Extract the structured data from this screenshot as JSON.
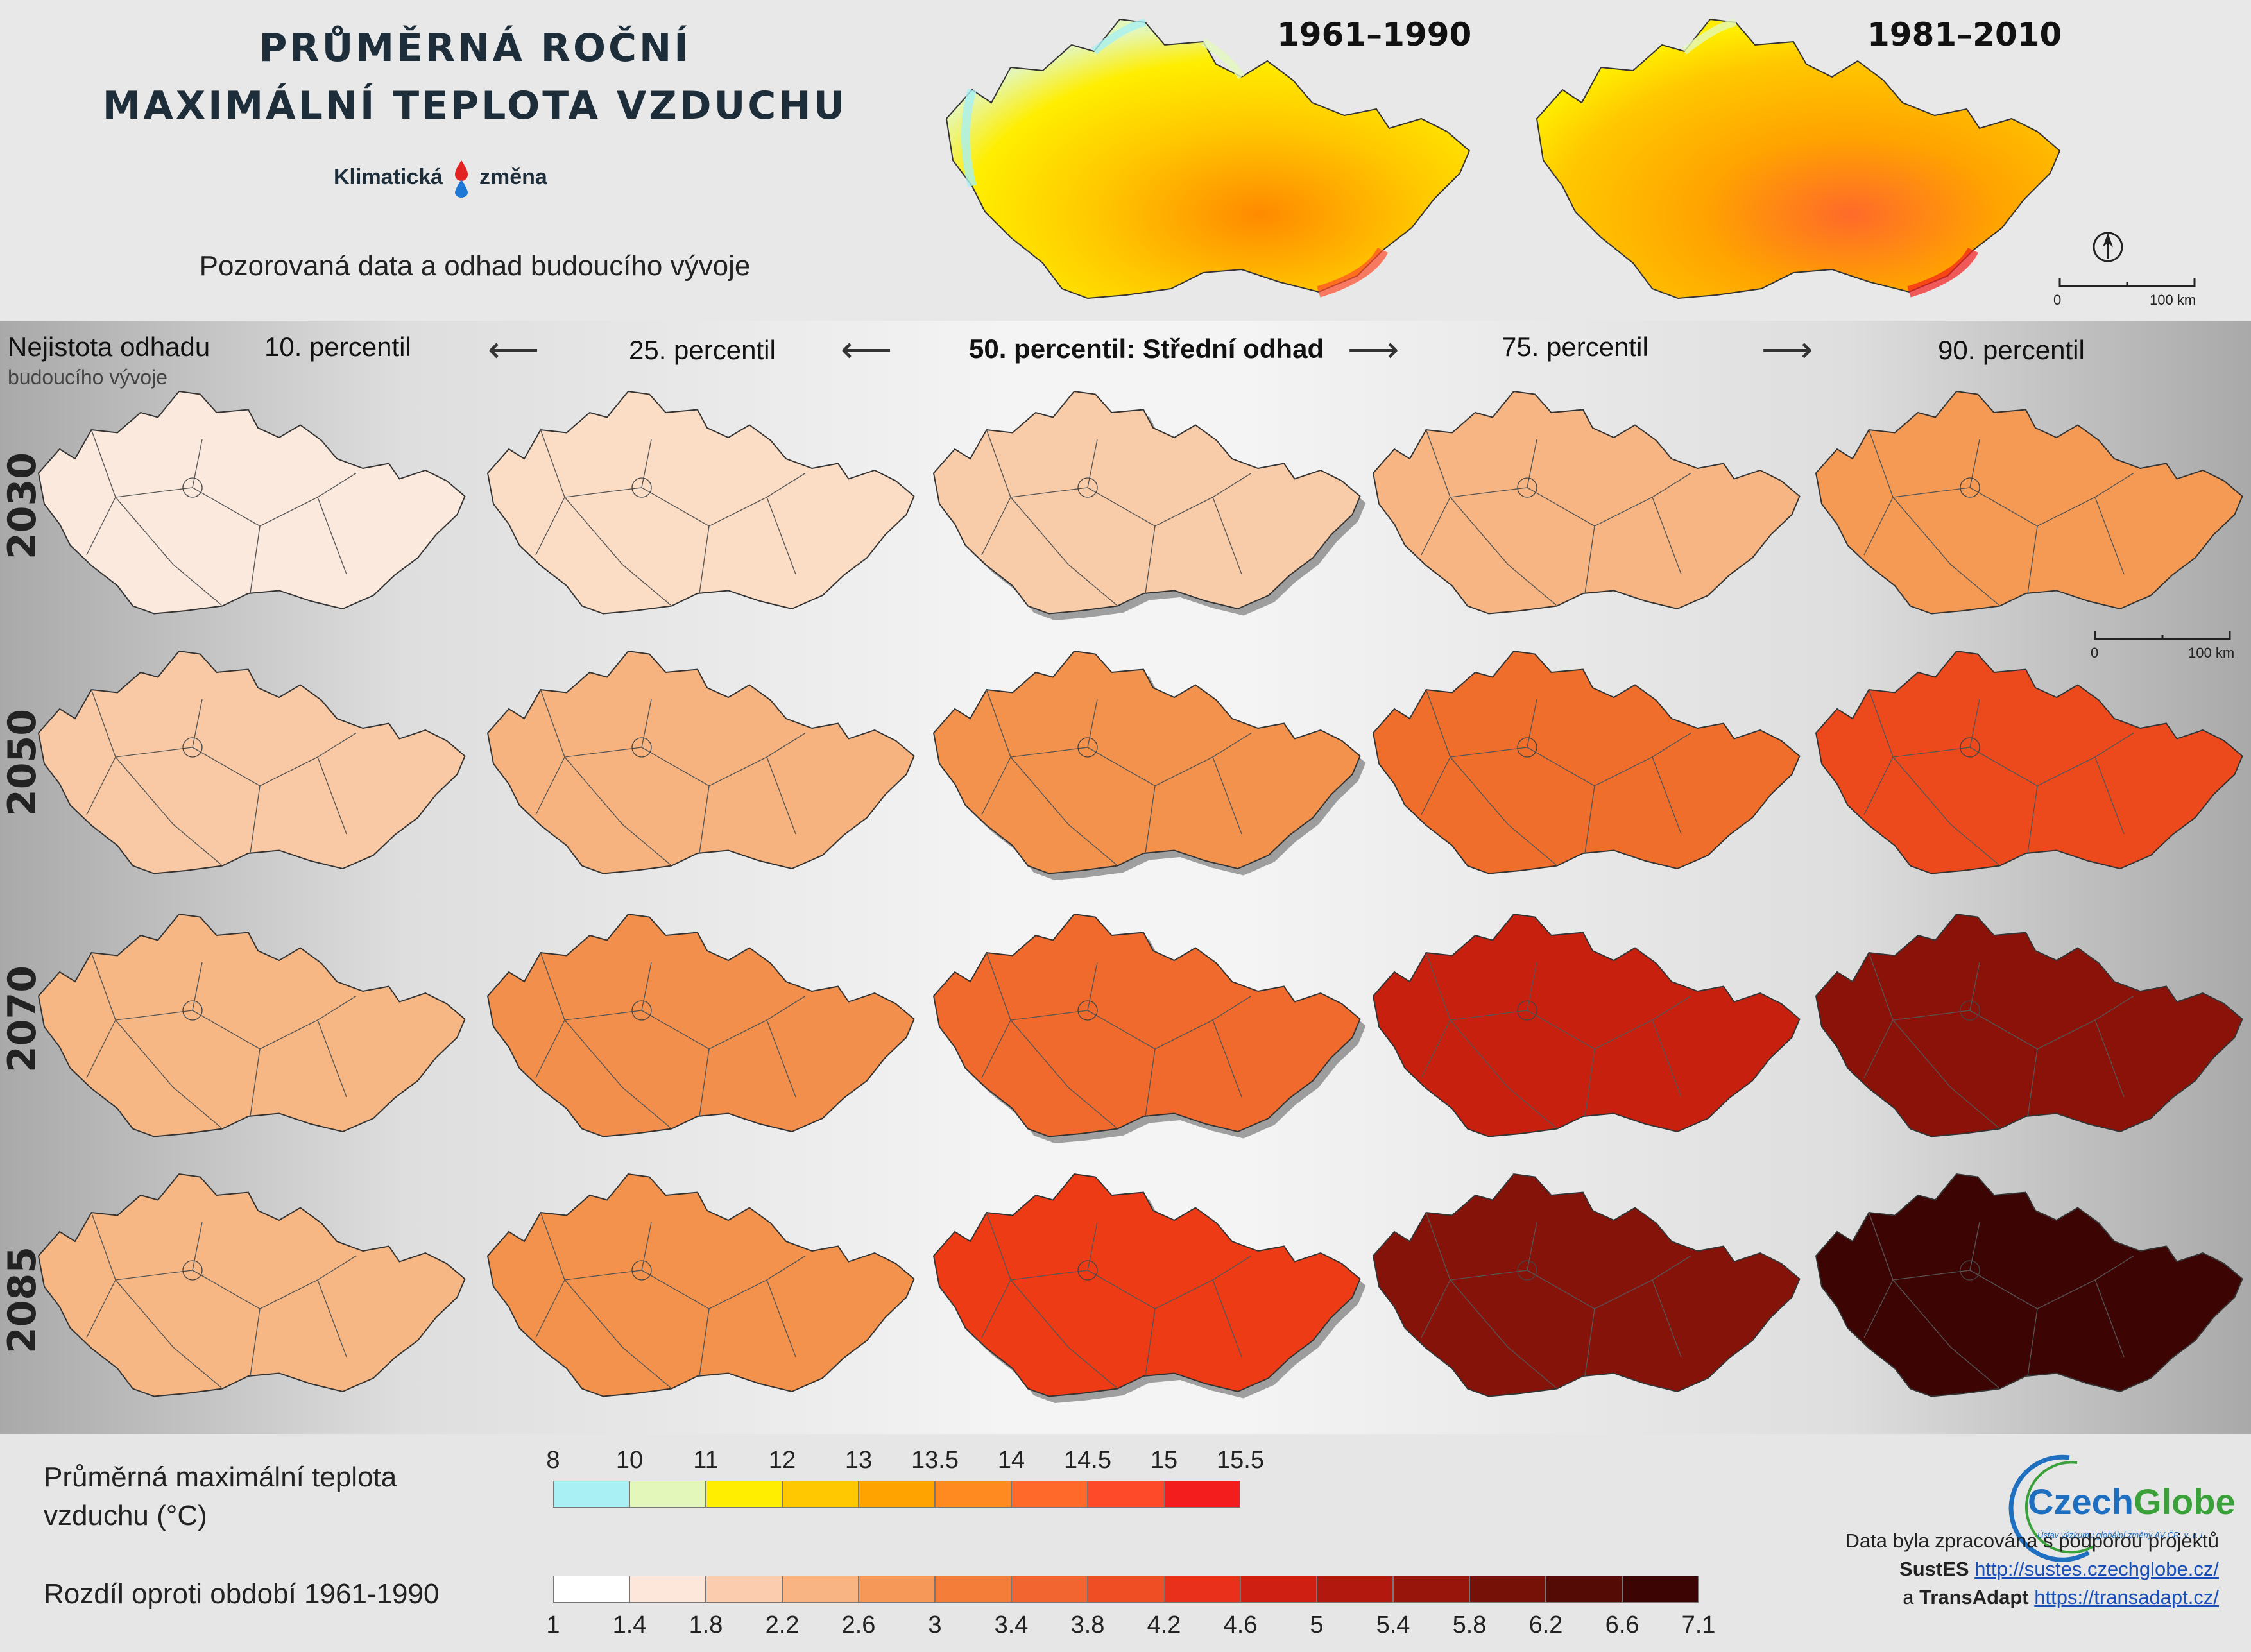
{
  "header": {
    "title_line1": "PRŮMĚRNÁ ROČNÍ",
    "title_line2": "MAXIMÁLNÍ TEPLOTA VZDUCHU",
    "brand_part1": "Klimatická",
    "brand_part2": "změna",
    "subtitle": "Pozorovaná data a odhad budoucího vývoje",
    "period_left": "1961–1990",
    "period_right": "1981–2010"
  },
  "scale_bar": {
    "zero": "0",
    "distance": "100 km"
  },
  "grid": {
    "uncertainty_label": "Nejistota odhadu",
    "uncertainty_sublabel": "budoucího vývoje",
    "percentiles": [
      "10. percentil",
      "25. percentil",
      "50. percentil: Střední odhad",
      "75. percentil",
      "90. percentil"
    ],
    "years": [
      "2030",
      "2050",
      "2070",
      "2085"
    ],
    "fill_colors": [
      [
        "#fbe9de",
        "#fbdcc5",
        "#f8cba9",
        "#f6b582",
        "#f49a55"
      ],
      [
        "#f8c9a4",
        "#f6b37f",
        "#f2924d",
        "#ef6e2c",
        "#ec4a1c"
      ],
      [
        "#f6b784",
        "#f28f4c",
        "#ef6a2c",
        "#c8200f",
        "#8a1208"
      ],
      [
        "#f6b784",
        "#f2924d",
        "#ec3b15",
        "#85130a",
        "#3c0503"
      ]
    ]
  },
  "legend": {
    "abs_title_line1": "Průměrná maximální teplota",
    "abs_title_line2": "vzduchu (°C)",
    "abs_ticks": [
      "8",
      "10",
      "11",
      "12",
      "13",
      "13.5",
      "14",
      "14.5",
      "15",
      "15.5"
    ],
    "abs_colors": [
      "#a8f0f4",
      "#e4f7bb",
      "#ffee00",
      "#ffc800",
      "#ffa300",
      "#ff8a1f",
      "#ff6a2a",
      "#ff4a2a",
      "#f41d1d"
    ],
    "diff_title": "Rozdíl oproti období 1961-1990",
    "diff_ticks": [
      "1",
      "1.4",
      "1.8",
      "2.2",
      "2.6",
      "3",
      "3.4",
      "3.8",
      "4.2",
      "4.6",
      "5",
      "5.4",
      "5.8",
      "6.2",
      "6.6",
      "7.1"
    ],
    "diff_colors": [
      "#ffffff",
      "#fde6da",
      "#fbccad",
      "#f8b482",
      "#f69858",
      "#f47d3a",
      "#f26530",
      "#ef4d24",
      "#e9301a",
      "#cf1f12",
      "#b3180e",
      "#98150c",
      "#761108",
      "#540b05",
      "#3c0503"
    ]
  },
  "logo": {
    "name_part1": "Czech",
    "name_part2": "Globe",
    "tagline": "Ústav výzkumu globální změny AV ČR, v. v. i."
  },
  "credits": {
    "line1": "Data byla zpracována s podporou projektů",
    "project1": "SustES",
    "url1": "http://sustes.czechglobe.cz/",
    "prefix2": "a",
    "project2": "TransAdapt",
    "url2": "https://transadapt.cz/"
  }
}
